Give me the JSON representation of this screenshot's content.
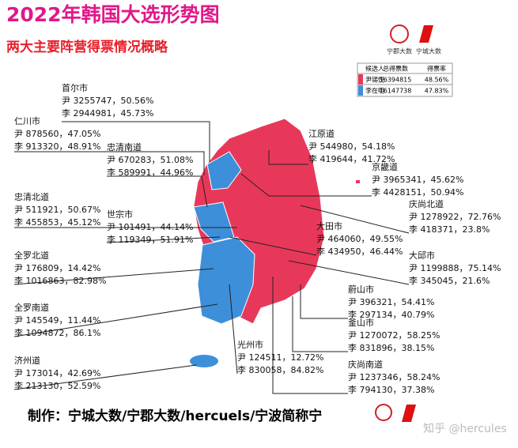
{
  "header": {
    "title": "2022年韩国大选形势图",
    "subtitle": "两大主要阵营得票情况概略",
    "logos": [
      "宁郡大数",
      "宁城大数"
    ]
  },
  "legend_table": {
    "columns": [
      "候选人",
      "总得票数",
      "得票率"
    ],
    "rows": [
      [
        "尹锡悦",
        "16394815",
        "48.56%"
      ],
      [
        "李在明",
        "16147738",
        "47.83%"
      ]
    ]
  },
  "regions": [
    {
      "name": "首尔市",
      "lines": [
        "尹 3255747，50.56%",
        "李 2944981，45.73%"
      ]
    },
    {
      "name": "仁川市",
      "lines": [
        "尹 878560，47.05%",
        "李 913320，48.91%"
      ]
    },
    {
      "name": "忠清南道",
      "lines": [
        "尹 670283，51.08%",
        "李 589991，44.96%"
      ]
    },
    {
      "name": "忠清北道",
      "lines": [
        "尹 511921，50.67%",
        "李 455853，45.12%"
      ]
    },
    {
      "name": "世宗市",
      "lines": [
        "尹 101491，44.14%",
        "李 119349，51.91%"
      ]
    },
    {
      "name": "全罗北道",
      "lines": [
        "尹 176809，14.42%",
        "李 1016863，82.98%"
      ]
    },
    {
      "name": "全罗南道",
      "lines": [
        "尹 145549，11.44%",
        "李 1094872，86.1%"
      ]
    },
    {
      "name": "济州道",
      "lines": [
        "尹 173014，42.69%",
        "李 213130，52.59%"
      ]
    },
    {
      "name": "光州市",
      "lines": [
        "尹 124511，12.72%",
        "李 830058，84.82%"
      ]
    },
    {
      "name": "江原道",
      "lines": [
        "尹 544980，54.18%",
        "李 419644，41.72%"
      ]
    },
    {
      "name": "京畿道",
      "lines": [
        "尹 3965341，45.62%",
        "李 4428151，50.94%"
      ]
    },
    {
      "name": "庆尚北道",
      "lines": [
        "尹 1278922，72.76%",
        "李 418371，23.8%"
      ]
    },
    {
      "name": "大田市",
      "lines": [
        "尹 464060，49.55%",
        "李 434950，46.44%"
      ]
    },
    {
      "name": "大邱市",
      "lines": [
        "尹 1199888，75.14%",
        "李 345045，21.6%"
      ]
    },
    {
      "name": "蔚山市",
      "lines": [
        "尹 396321，54.41%",
        "李 297134，40.79%"
      ]
    },
    {
      "name": "釜山市",
      "lines": [
        "尹 1270072，58.25%",
        "李 831896，38.15%"
      ]
    },
    {
      "name": "庆尚南道",
      "lines": [
        "尹 1237346，58.24%",
        "李 794130，37.38%"
      ]
    }
  ],
  "footer": {
    "credit": "制作：宁城大数/宁郡大数/hercuels/宁波简称宁",
    "watermark": "知乎 @hercules"
  }
}
